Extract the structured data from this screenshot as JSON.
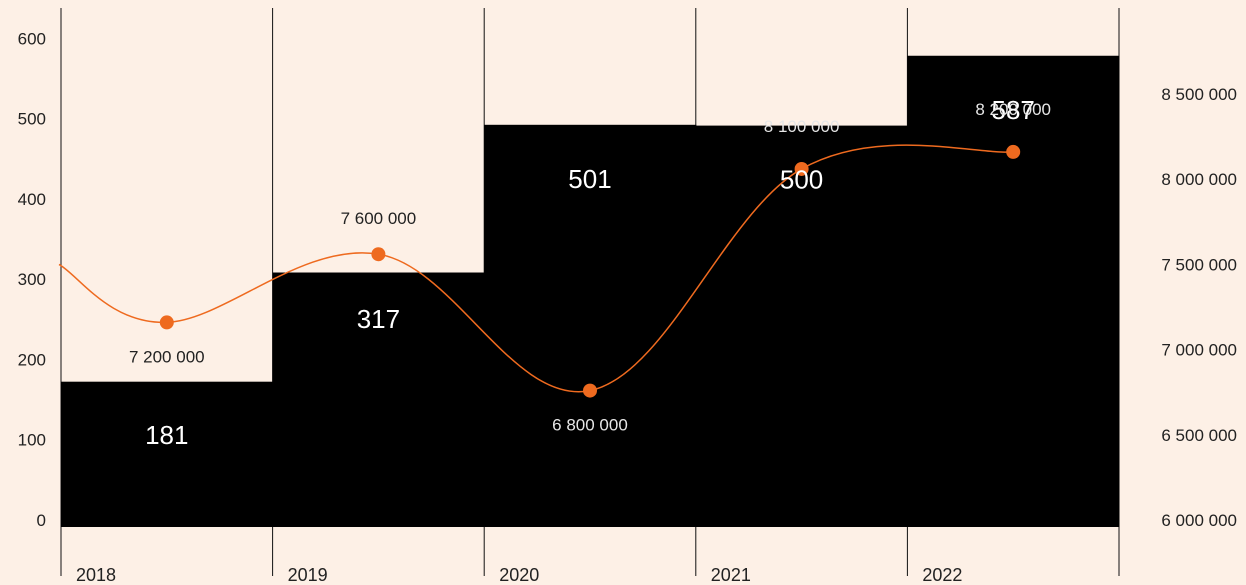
{
  "chart_data": {
    "type": "bar",
    "categories": [
      "2018",
      "2019",
      "2020",
      "2021",
      "2022"
    ],
    "series": [
      {
        "type": "bar",
        "axis": "left",
        "values": [
          181,
          317,
          501,
          500,
          587
        ]
      },
      {
        "type": "line",
        "axis": "right",
        "values": [
          7200000,
          7600000,
          6800000,
          8100000,
          8200000
        ]
      }
    ],
    "bar_labels": [
      "181",
      "317",
      "501",
      "500",
      "587"
    ],
    "point_labels": [
      "7 200 000",
      "7 600 000",
      "6 800 000",
      "8 100 000",
      "8 200 000"
    ],
    "y_left": {
      "ylim": [
        0,
        650
      ],
      "ticks": [
        "0",
        "100",
        "200",
        "300",
        "400",
        "500",
        "600"
      ]
    },
    "y_right": {
      "ylim": [
        6000000,
        8600000
      ],
      "ticks": [
        "6 000 000",
        "6 500 000",
        "7 000 000",
        "7 500 000",
        "8 000 000",
        "8 500 000"
      ]
    },
    "grid": false,
    "colors": {
      "background": "#fdf0e6",
      "bar": "#000000",
      "line": "#ee6a1f",
      "bar_label": "#ffffff",
      "point_label_over_bar": "#e6e6e6",
      "point_label": "#222222",
      "divider": "#111111"
    }
  }
}
